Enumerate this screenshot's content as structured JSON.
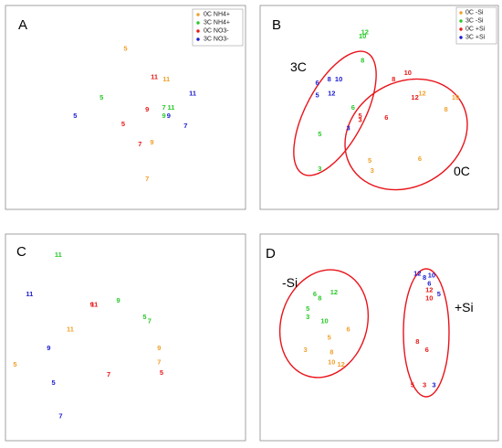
{
  "colors": {
    "orange": "#f0a02a",
    "green": "#28c828",
    "red": "#e81818",
    "blue": "#1a1ad0",
    "ellipse": "#e8141b"
  },
  "chart_data": [
    {
      "panel": "A",
      "type": "scatter",
      "legend": {
        "placement": "top-right",
        "entries": [
          {
            "label": "0C NH4+",
            "color": "orange"
          },
          {
            "label": "3C NH4+",
            "color": "green"
          },
          {
            "label": "0C NO3-",
            "color": "red"
          },
          {
            "label": "3C NO3-",
            "color": "blue"
          }
        ]
      },
      "xlim": [
        0,
        1
      ],
      "ylim": [
        0,
        1
      ],
      "points": [
        {
          "label": "5",
          "color": "orange",
          "x": 0.5,
          "y": 0.79
        },
        {
          "label": "11",
          "color": "orange",
          "x": 0.67,
          "y": 0.64
        },
        {
          "label": "9",
          "color": "orange",
          "x": 0.61,
          "y": 0.33
        },
        {
          "label": "7",
          "color": "orange",
          "x": 0.59,
          "y": 0.15
        },
        {
          "label": "5",
          "color": "green",
          "x": 0.4,
          "y": 0.55
        },
        {
          "label": "7",
          "color": "green",
          "x": 0.66,
          "y": 0.5
        },
        {
          "label": "11",
          "color": "green",
          "x": 0.69,
          "y": 0.5
        },
        {
          "label": "9",
          "color": "green",
          "x": 0.66,
          "y": 0.46
        },
        {
          "label": "11",
          "color": "red",
          "x": 0.62,
          "y": 0.65
        },
        {
          "label": "9",
          "color": "red",
          "x": 0.59,
          "y": 0.49
        },
        {
          "label": "5",
          "color": "red",
          "x": 0.49,
          "y": 0.42
        },
        {
          "label": "7",
          "color": "red",
          "x": 0.56,
          "y": 0.32
        },
        {
          "label": "5",
          "color": "blue",
          "x": 0.29,
          "y": 0.46
        },
        {
          "label": "11",
          "color": "blue",
          "x": 0.78,
          "y": 0.57
        },
        {
          "label": "9",
          "color": "blue",
          "x": 0.68,
          "y": 0.46
        },
        {
          "label": "7",
          "color": "blue",
          "x": 0.75,
          "y": 0.41
        }
      ]
    },
    {
      "panel": "B",
      "type": "scatter",
      "legend": {
        "placement": "top-right",
        "entries": [
          {
            "label": "0C -Si",
            "color": "orange"
          },
          {
            "label": "3C -Si",
            "color": "green"
          },
          {
            "label": "0C +Si",
            "color": "red"
          },
          {
            "label": "3C +Si",
            "color": "blue"
          }
        ]
      },
      "group_labels": [
        "3C",
        "0C"
      ],
      "xlim": [
        0,
        1
      ],
      "ylim": [
        0,
        1
      ],
      "points": [
        {
          "label": "12",
          "color": "green",
          "x": 0.44,
          "y": 0.87
        },
        {
          "label": "10",
          "color": "green",
          "x": 0.43,
          "y": 0.85
        },
        {
          "label": "8",
          "color": "green",
          "x": 0.43,
          "y": 0.73
        },
        {
          "label": "6",
          "color": "green",
          "x": 0.39,
          "y": 0.5
        },
        {
          "label": "5",
          "color": "green",
          "x": 0.25,
          "y": 0.37
        },
        {
          "label": "3",
          "color": "green",
          "x": 0.25,
          "y": 0.2
        },
        {
          "label": "8",
          "color": "blue",
          "x": 0.29,
          "y": 0.64
        },
        {
          "label": "10",
          "color": "blue",
          "x": 0.33,
          "y": 0.64
        },
        {
          "label": "6",
          "color": "blue",
          "x": 0.24,
          "y": 0.62
        },
        {
          "label": "5",
          "color": "blue",
          "x": 0.24,
          "y": 0.56
        },
        {
          "label": "12",
          "color": "blue",
          "x": 0.3,
          "y": 0.57
        },
        {
          "label": "3",
          "color": "blue",
          "x": 0.37,
          "y": 0.4
        },
        {
          "label": "10",
          "color": "red",
          "x": 0.62,
          "y": 0.67
        },
        {
          "label": "8",
          "color": "red",
          "x": 0.56,
          "y": 0.64
        },
        {
          "label": "12",
          "color": "red",
          "x": 0.65,
          "y": 0.55
        },
        {
          "label": "6",
          "color": "red",
          "x": 0.53,
          "y": 0.45
        },
        {
          "label": "5",
          "color": "red",
          "x": 0.42,
          "y": 0.46
        },
        {
          "label": "3",
          "color": "red",
          "x": 0.42,
          "y": 0.44
        },
        {
          "label": "12",
          "color": "orange",
          "x": 0.68,
          "y": 0.57
        },
        {
          "label": "10",
          "color": "orange",
          "x": 0.82,
          "y": 0.55
        },
        {
          "label": "8",
          "color": "orange",
          "x": 0.78,
          "y": 0.49
        },
        {
          "label": "6",
          "color": "orange",
          "x": 0.67,
          "y": 0.25
        },
        {
          "label": "5",
          "color": "orange",
          "x": 0.46,
          "y": 0.24
        },
        {
          "label": "3",
          "color": "orange",
          "x": 0.47,
          "y": 0.19
        }
      ]
    },
    {
      "panel": "C",
      "type": "scatter",
      "xlim": [
        0,
        1
      ],
      "ylim": [
        0,
        1
      ],
      "points": [
        {
          "label": "11",
          "color": "green",
          "x": 0.22,
          "y": 0.9
        },
        {
          "label": "9",
          "color": "green",
          "x": 0.47,
          "y": 0.68
        },
        {
          "label": "5",
          "color": "green",
          "x": 0.58,
          "y": 0.6
        },
        {
          "label": "7",
          "color": "green",
          "x": 0.6,
          "y": 0.58
        },
        {
          "label": "11",
          "color": "blue",
          "x": 0.1,
          "y": 0.71
        },
        {
          "label": "9",
          "color": "blue",
          "x": 0.18,
          "y": 0.45
        },
        {
          "label": "5",
          "color": "blue",
          "x": 0.2,
          "y": 0.28
        },
        {
          "label": "7",
          "color": "blue",
          "x": 0.23,
          "y": 0.12
        },
        {
          "label": "11",
          "color": "red",
          "x": 0.37,
          "y": 0.66
        },
        {
          "label": "9",
          "color": "red",
          "x": 0.36,
          "y": 0.66
        },
        {
          "label": "7",
          "color": "red",
          "x": 0.43,
          "y": 0.32
        },
        {
          "label": "5",
          "color": "red",
          "x": 0.65,
          "y": 0.33
        },
        {
          "label": "11",
          "color": "orange",
          "x": 0.27,
          "y": 0.54
        },
        {
          "label": "9",
          "color": "orange",
          "x": 0.64,
          "y": 0.45
        },
        {
          "label": "5",
          "color": "orange",
          "x": 0.04,
          "y": 0.37
        },
        {
          "label": "7",
          "color": "orange",
          "x": 0.64,
          "y": 0.38
        }
      ]
    },
    {
      "panel": "D",
      "type": "scatter",
      "group_labels": [
        "-Si",
        "+Si"
      ],
      "xlim": [
        0,
        1
      ],
      "ylim": [
        0,
        1
      ],
      "points": [
        {
          "label": "12",
          "color": "green",
          "x": 0.31,
          "y": 0.72
        },
        {
          "label": "6",
          "color": "green",
          "x": 0.23,
          "y": 0.71
        },
        {
          "label": "8",
          "color": "green",
          "x": 0.25,
          "y": 0.69
        },
        {
          "label": "5",
          "color": "green",
          "x": 0.2,
          "y": 0.64
        },
        {
          "label": "3",
          "color": "green",
          "x": 0.2,
          "y": 0.6
        },
        {
          "label": "10",
          "color": "green",
          "x": 0.27,
          "y": 0.58
        },
        {
          "label": "6",
          "color": "orange",
          "x": 0.37,
          "y": 0.54
        },
        {
          "label": "5",
          "color": "orange",
          "x": 0.29,
          "y": 0.5
        },
        {
          "label": "3",
          "color": "orange",
          "x": 0.19,
          "y": 0.44
        },
        {
          "label": "8",
          "color": "orange",
          "x": 0.3,
          "y": 0.43
        },
        {
          "label": "10",
          "color": "orange",
          "x": 0.3,
          "y": 0.38
        },
        {
          "label": "12",
          "color": "orange",
          "x": 0.34,
          "y": 0.37
        },
        {
          "label": "12",
          "color": "blue",
          "x": 0.66,
          "y": 0.81
        },
        {
          "label": "8",
          "color": "blue",
          "x": 0.69,
          "y": 0.79
        },
        {
          "label": "10",
          "color": "blue",
          "x": 0.72,
          "y": 0.8
        },
        {
          "label": "6",
          "color": "blue",
          "x": 0.71,
          "y": 0.76
        },
        {
          "label": "5",
          "color": "blue",
          "x": 0.75,
          "y": 0.71
        },
        {
          "label": "12",
          "color": "red",
          "x": 0.71,
          "y": 0.73
        },
        {
          "label": "10",
          "color": "red",
          "x": 0.71,
          "y": 0.69
        },
        {
          "label": "8",
          "color": "red",
          "x": 0.66,
          "y": 0.48
        },
        {
          "label": "6",
          "color": "red",
          "x": 0.7,
          "y": 0.44
        },
        {
          "label": "5",
          "color": "red",
          "x": 0.64,
          "y": 0.27
        },
        {
          "label": "3",
          "color": "red",
          "x": 0.69,
          "y": 0.27
        },
        {
          "label": "3",
          "color": "blue",
          "x": 0.73,
          "y": 0.27
        }
      ]
    }
  ]
}
